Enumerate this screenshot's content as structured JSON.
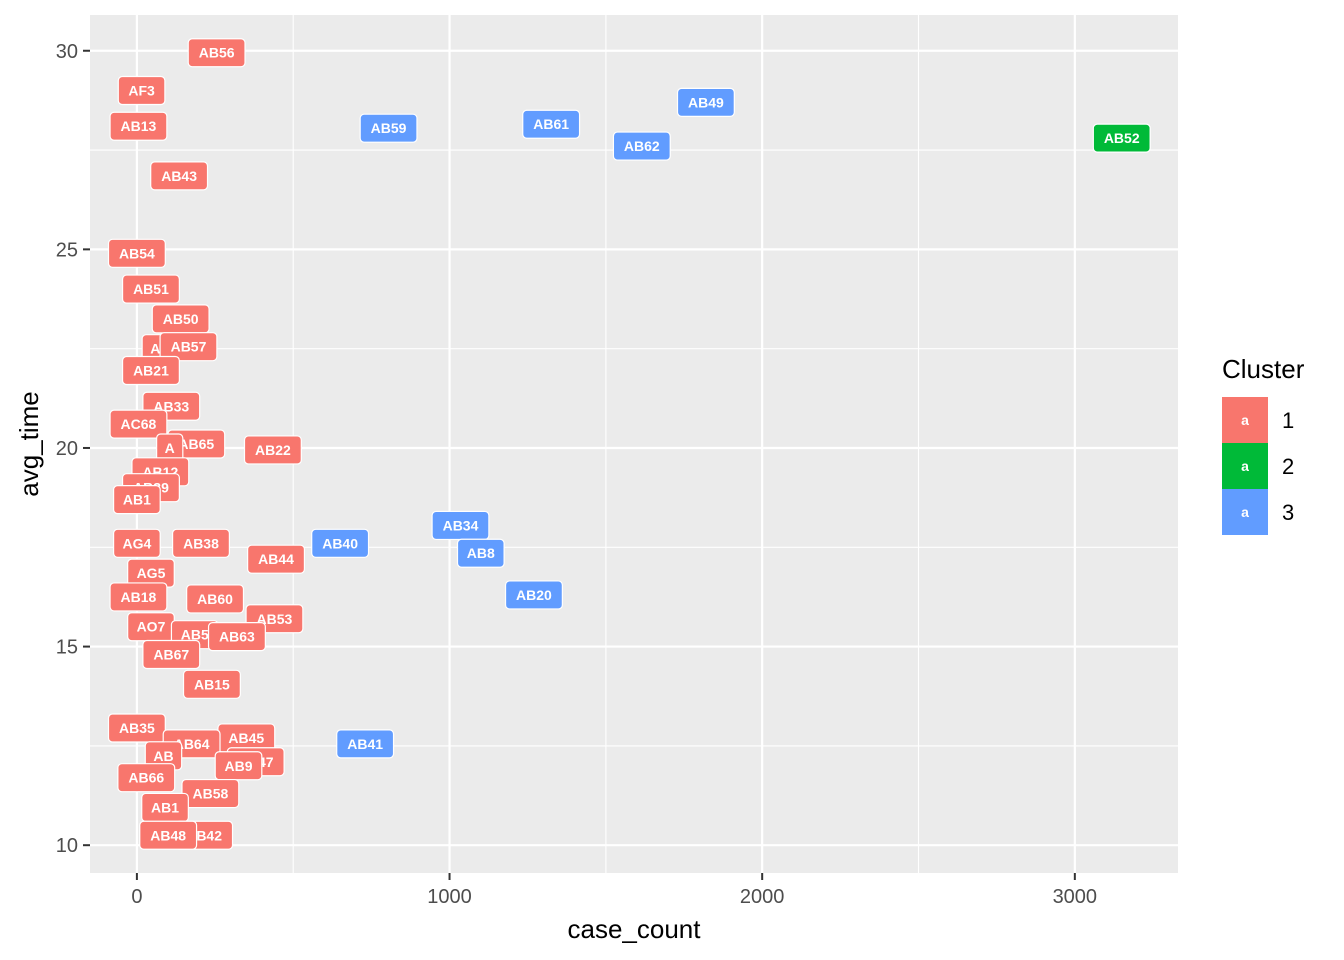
{
  "chart_data": {
    "type": "scatter",
    "xlabel": "case_count",
    "ylabel": "avg_time",
    "xlim": [
      -150,
      3330
    ],
    "ylim": [
      9.3,
      30.9
    ],
    "x_ticks": [
      0,
      1000,
      2000,
      3000
    ],
    "y_ticks": [
      10,
      15,
      20,
      25,
      30
    ],
    "x_tick_labels": [
      "0",
      "1000",
      "2000",
      "3000"
    ],
    "y_tick_labels": [
      "10",
      "15",
      "20",
      "25",
      "30"
    ],
    "grid": true,
    "legend": {
      "title": "Cluster",
      "placement": "right",
      "key_glyph": "a",
      "entries": [
        {
          "label": "1",
          "color": "#F8766D"
        },
        {
          "label": "2",
          "color": "#00BA38"
        },
        {
          "label": "3",
          "color": "#619CFF"
        }
      ]
    },
    "points": [
      {
        "label": "AB56",
        "x": 255,
        "y": 29.95,
        "cluster": "1"
      },
      {
        "label": "AF3",
        "x": 15,
        "y": 29.0,
        "cluster": "1"
      },
      {
        "label": "AB13",
        "x": 5,
        "y": 28.1,
        "cluster": "1"
      },
      {
        "label": "AB43",
        "x": 135,
        "y": 26.85,
        "cluster": "1"
      },
      {
        "label": "AB54",
        "x": 0,
        "y": 24.9,
        "cluster": "1"
      },
      {
        "label": "AB51",
        "x": 45,
        "y": 24.0,
        "cluster": "1"
      },
      {
        "label": "AB50",
        "x": 140,
        "y": 23.25,
        "cluster": "1"
      },
      {
        "label": "AB",
        "x": 75,
        "y": 22.5,
        "cluster": "1"
      },
      {
        "label": "AB57",
        "x": 165,
        "y": 22.55,
        "cluster": "1"
      },
      {
        "label": "AB21",
        "x": 45,
        "y": 21.95,
        "cluster": "1"
      },
      {
        "label": "AB33",
        "x": 110,
        "y": 21.05,
        "cluster": "1"
      },
      {
        "label": "AC68",
        "x": 5,
        "y": 20.6,
        "cluster": "1"
      },
      {
        "label": "AB65",
        "x": 190,
        "y": 20.1,
        "cluster": "1"
      },
      {
        "label": "A",
        "x": 105,
        "y": 20.0,
        "cluster": "1"
      },
      {
        "label": "AB22",
        "x": 435,
        "y": 19.95,
        "cluster": "1"
      },
      {
        "label": "AB12",
        "x": 75,
        "y": 19.4,
        "cluster": "1"
      },
      {
        "label": "AB39",
        "x": 45,
        "y": 19.0,
        "cluster": "1"
      },
      {
        "label": "AB1",
        "x": 0,
        "y": 18.7,
        "cluster": "1"
      },
      {
        "label": "AG4",
        "x": 0,
        "y": 17.6,
        "cluster": "1"
      },
      {
        "label": "AB38",
        "x": 205,
        "y": 17.6,
        "cluster": "1"
      },
      {
        "label": "AB44",
        "x": 445,
        "y": 17.2,
        "cluster": "1"
      },
      {
        "label": "AG5",
        "x": 45,
        "y": 16.85,
        "cluster": "1"
      },
      {
        "label": "AB18",
        "x": 5,
        "y": 16.25,
        "cluster": "1"
      },
      {
        "label": "AB60",
        "x": 250,
        "y": 16.2,
        "cluster": "1"
      },
      {
        "label": "AB53",
        "x": 440,
        "y": 15.7,
        "cluster": "1"
      },
      {
        "label": "AO7",
        "x": 45,
        "y": 15.5,
        "cluster": "1"
      },
      {
        "label": "AB5",
        "x": 185,
        "y": 15.3,
        "cluster": "1"
      },
      {
        "label": "AB63",
        "x": 320,
        "y": 15.25,
        "cluster": "1"
      },
      {
        "label": "AB67",
        "x": 110,
        "y": 14.8,
        "cluster": "1"
      },
      {
        "label": "AB15",
        "x": 240,
        "y": 14.05,
        "cluster": "1"
      },
      {
        "label": "AB35",
        "x": 0,
        "y": 12.95,
        "cluster": "1"
      },
      {
        "label": "AB45",
        "x": 350,
        "y": 12.7,
        "cluster": "1"
      },
      {
        "label": "AB64",
        "x": 175,
        "y": 12.55,
        "cluster": "1"
      },
      {
        "label": "AB",
        "x": 85,
        "y": 12.25,
        "cluster": "1"
      },
      {
        "label": "AB47",
        "x": 380,
        "y": 12.1,
        "cluster": "1"
      },
      {
        "label": "AB9",
        "x": 325,
        "y": 12.0,
        "cluster": "1"
      },
      {
        "label": "AB66",
        "x": 30,
        "y": 11.7,
        "cluster": "1"
      },
      {
        "label": "AB58",
        "x": 235,
        "y": 11.3,
        "cluster": "1"
      },
      {
        "label": "AB1",
        "x": 90,
        "y": 10.95,
        "cluster": "1"
      },
      {
        "label": "AB42",
        "x": 215,
        "y": 10.25,
        "cluster": "1"
      },
      {
        "label": "AB48",
        "x": 100,
        "y": 10.25,
        "cluster": "1"
      },
      {
        "label": "AB59",
        "x": 805,
        "y": 28.05,
        "cluster": "3"
      },
      {
        "label": "AB61",
        "x": 1325,
        "y": 28.15,
        "cluster": "3"
      },
      {
        "label": "AB49",
        "x": 1820,
        "y": 28.7,
        "cluster": "3"
      },
      {
        "label": "AB62",
        "x": 1615,
        "y": 27.6,
        "cluster": "3"
      },
      {
        "label": "AB40",
        "x": 650,
        "y": 17.6,
        "cluster": "3"
      },
      {
        "label": "AB34",
        "x": 1035,
        "y": 18.05,
        "cluster": "3"
      },
      {
        "label": "AB8",
        "x": 1100,
        "y": 17.35,
        "cluster": "3"
      },
      {
        "label": "AB20",
        "x": 1270,
        "y": 16.3,
        "cluster": "3"
      },
      {
        "label": "AB41",
        "x": 730,
        "y": 12.55,
        "cluster": "3"
      },
      {
        "label": "AB52",
        "x": 3150,
        "y": 27.8,
        "cluster": "2"
      }
    ]
  }
}
